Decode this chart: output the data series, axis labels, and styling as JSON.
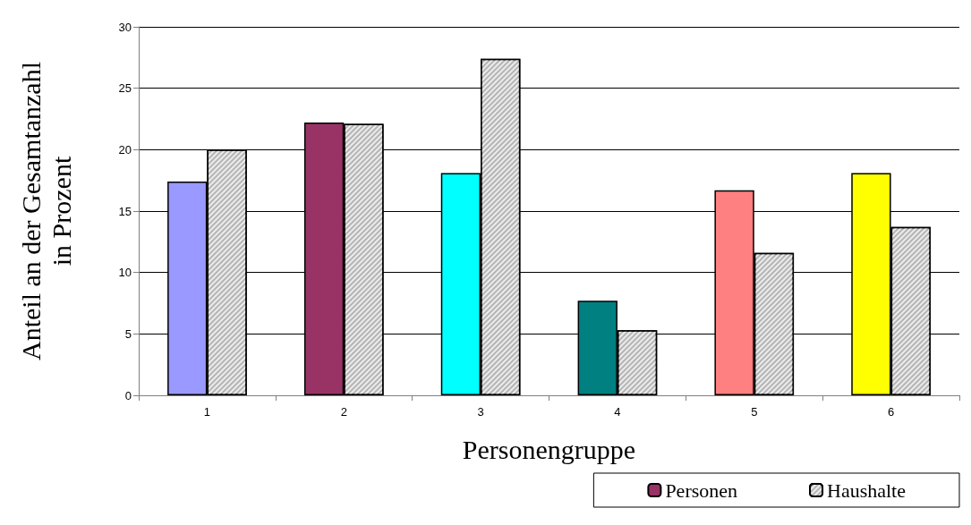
{
  "chart_data": {
    "type": "bar",
    "xlabel": "Personengruppe",
    "ylabel": "Anteil an der Gesamtanzahl\nin Prozent",
    "categories": [
      "1",
      "2",
      "3",
      "4",
      "5",
      "6"
    ],
    "series": [
      {
        "name": "Personen",
        "color": "#993366",
        "colors": [
          "#9999ff",
          "#993366",
          "#00ffff",
          "#008080",
          "#ff8080",
          "#ffff00"
        ],
        "values": [
          17.4,
          22.2,
          18.1,
          7.7,
          16.7,
          18.1
        ]
      },
      {
        "name": "Haushalte",
        "color": "#b4b4b4",
        "values": [
          20.0,
          22.1,
          27.4,
          5.3,
          11.6,
          13.7
        ]
      }
    ],
    "ylim": [
      0,
      30
    ],
    "yticks": [
      0,
      5,
      10,
      15,
      20,
      25,
      30
    ],
    "grid": "y",
    "legend": "bottom right"
  }
}
